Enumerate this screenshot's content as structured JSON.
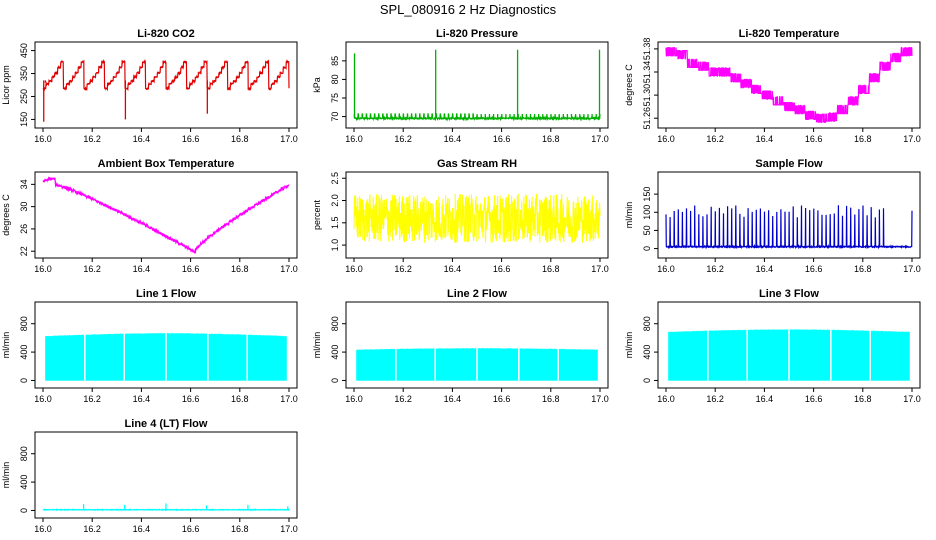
{
  "figure": {
    "title": "SPL_080916  2 Hz Diagnostics"
  },
  "chart_data": [
    {
      "type": "line",
      "title": "Li-820 CO2",
      "ylabel": "Licor ppm",
      "xlim": [
        16.0,
        17.0
      ],
      "ylim": [
        130,
        470
      ],
      "xticks": [
        "16.0",
        "16.2",
        "16.4",
        "16.6",
        "16.8",
        "17.0"
      ],
      "yticks": [
        "150",
        "250",
        "350",
        "450"
      ],
      "color": "#e00000",
      "pattern": "steps",
      "base": 320,
      "spread": 60,
      "spikes": [
        {
          "x": 16.003,
          "y": 140
        },
        {
          "x": 16.01,
          "y": 310
        },
        {
          "x": 16.335,
          "y": 150
        },
        {
          "x": 16.668,
          "y": 175
        }
      ]
    },
    {
      "type": "line",
      "title": "Li-820 Pressure",
      "ylabel": "kPa",
      "xlim": [
        16.0,
        17.0
      ],
      "ylim": [
        68,
        89
      ],
      "xticks": [
        "16.0",
        "16.2",
        "16.4",
        "16.6",
        "16.8",
        "17.0"
      ],
      "yticks": [
        "70",
        "75",
        "80",
        "85"
      ],
      "color": "#00b000",
      "pattern": "flat-noise",
      "base": 69.5,
      "spread": 1.2,
      "spikes": [
        {
          "x": 16.002,
          "y": 87
        },
        {
          "x": 16.332,
          "y": 88
        },
        {
          "x": 16.665,
          "y": 88
        },
        {
          "x": 16.998,
          "y": 88
        }
      ]
    },
    {
      "type": "line",
      "title": "Li-820 Temperature",
      "ylabel": "degrees C",
      "xlim": [
        16.0,
        17.0
      ],
      "ylim": [
        51.25,
        51.385
      ],
      "xticks": [
        "16.0",
        "16.2",
        "16.4",
        "16.6",
        "16.8",
        "17.0"
      ],
      "yticks": [
        "51.26",
        "51.30",
        "51.34",
        "51.38"
      ],
      "color": "#ff00ff",
      "pattern": "temp-steps",
      "base": 51.36,
      "spread": 0.02,
      "spikes": []
    },
    {
      "type": "line",
      "title": "Ambient Box Temperature",
      "ylabel": "degrees C",
      "xlim": [
        16.0,
        17.0
      ],
      "ylim": [
        21.5,
        35.5
      ],
      "xticks": [
        "16.0",
        "16.2",
        "16.4",
        "16.6",
        "16.8",
        "17.0"
      ],
      "yticks": [
        "22",
        "26",
        "30",
        "34"
      ],
      "color": "#ff00ff",
      "pattern": "valley",
      "base": 34.5,
      "spread": 22,
      "spikes": []
    },
    {
      "type": "line",
      "title": "Gas Stream RH",
      "ylabel": "percent",
      "xlim": [
        16.0,
        17.0
      ],
      "ylim": [
        0.8,
        2.55
      ],
      "xticks": [
        "16.0",
        "16.2",
        "16.4",
        "16.6",
        "16.8",
        "17.0"
      ],
      "yticks": [
        "1.0",
        "1.5",
        "2.0",
        "2.5"
      ],
      "color": "#ffff00",
      "pattern": "dense-noise",
      "base": 1.6,
      "spread": 0.55,
      "spikes": []
    },
    {
      "type": "line",
      "title": "Sample Flow",
      "ylabel": "ml/min",
      "xlim": [
        16.0,
        17.0
      ],
      "ylim": [
        -15,
        200
      ],
      "xticks": [
        "16.0",
        "16.2",
        "16.4",
        "16.6",
        "16.8",
        "17.0"
      ],
      "yticks": [
        "0",
        "50",
        "100",
        "150"
      ],
      "color": "#0000cc",
      "pattern": "pulses",
      "base": 5,
      "spread": 115,
      "spikes": []
    },
    {
      "type": "area",
      "title": "Line 1 Flow",
      "ylabel": "ml/min",
      "xlim": [
        16.0,
        17.0
      ],
      "ylim": [
        -50,
        1050
      ],
      "xticks": [
        "16.0",
        "16.2",
        "16.4",
        "16.6",
        "16.8",
        "17.0"
      ],
      "yticks": [
        "0",
        "400",
        "800"
      ],
      "color": "#00ffff",
      "pattern": "block",
      "base": 620,
      "spread": 60,
      "spikes": []
    },
    {
      "type": "area",
      "title": "Line 2 Flow",
      "ylabel": "ml/min",
      "xlim": [
        16.0,
        17.0
      ],
      "ylim": [
        -50,
        1050
      ],
      "xticks": [
        "16.0",
        "16.2",
        "16.4",
        "16.6",
        "16.8",
        "17.0"
      ],
      "yticks": [
        "0",
        "400",
        "800"
      ],
      "color": "#00ffff",
      "pattern": "block",
      "base": 430,
      "spread": 30,
      "spikes": []
    },
    {
      "type": "area",
      "title": "Line 3 Flow",
      "ylabel": "ml/min",
      "xlim": [
        16.0,
        17.0
      ],
      "ylim": [
        -50,
        1050
      ],
      "xticks": [
        "16.0",
        "16.2",
        "16.4",
        "16.6",
        "16.8",
        "17.0"
      ],
      "yticks": [
        "0",
        "400",
        "800"
      ],
      "color": "#00ffff",
      "pattern": "block",
      "base": 680,
      "spread": 50,
      "spikes": []
    },
    {
      "type": "line",
      "title": "Line 4 (LT) Flow",
      "ylabel": "ml/min",
      "xlim": [
        16.0,
        17.0
      ],
      "ylim": [
        -50,
        1050
      ],
      "xticks": [
        "16.0",
        "16.2",
        "16.4",
        "16.6",
        "16.8",
        "17.0"
      ],
      "yticks": [
        "0",
        "400",
        "800"
      ],
      "color": "#00ffff",
      "pattern": "low-flat",
      "base": 10,
      "spread": 8,
      "spikes": [
        {
          "x": 16.165,
          "y": 90
        },
        {
          "x": 16.332,
          "y": 80
        },
        {
          "x": 16.5,
          "y": 100
        },
        {
          "x": 16.665,
          "y": 70
        },
        {
          "x": 16.833,
          "y": 80
        },
        {
          "x": 16.995,
          "y": 60
        }
      ]
    }
  ]
}
